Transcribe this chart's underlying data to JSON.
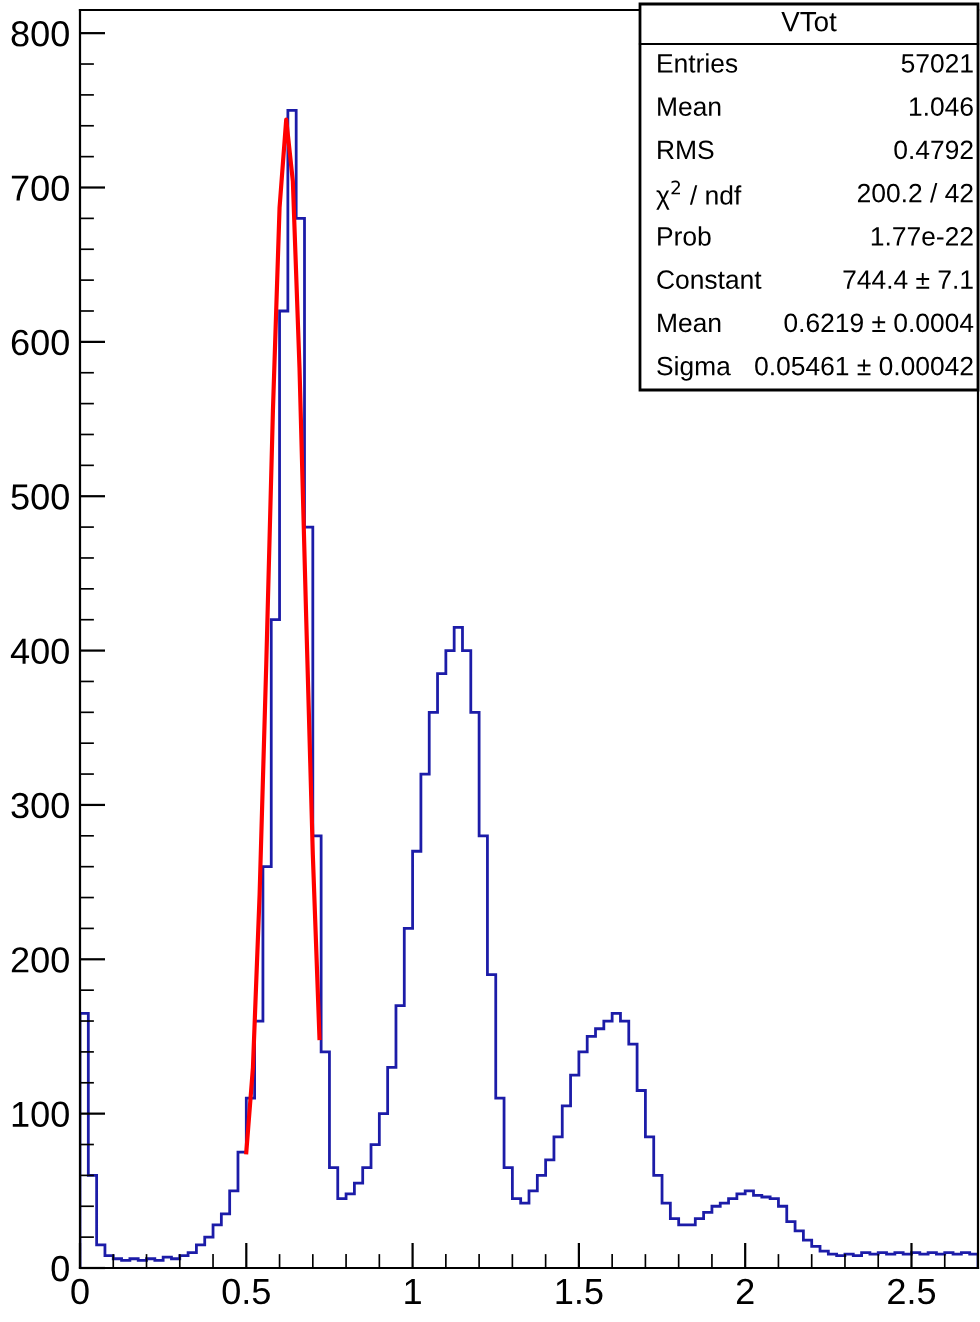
{
  "chart_data": {
    "type": "histogram",
    "title": "VTot",
    "bins": [
      0,
      0.025,
      0.05,
      0.075,
      0.1,
      0.125,
      0.15,
      0.175,
      0.2,
      0.225,
      0.25,
      0.275,
      0.3,
      0.325,
      0.35,
      0.375,
      0.4,
      0.425,
      0.45,
      0.475,
      0.5,
      0.525,
      0.55,
      0.575,
      0.6,
      0.625,
      0.65,
      0.675,
      0.7,
      0.725,
      0.75,
      0.775,
      0.8,
      0.825,
      0.85,
      0.875,
      0.9,
      0.925,
      0.95,
      0.975,
      1.0,
      1.025,
      1.05,
      1.075,
      1.1,
      1.125,
      1.15,
      1.175,
      1.2,
      1.225,
      1.25,
      1.275,
      1.3,
      1.325,
      1.35,
      1.375,
      1.4,
      1.425,
      1.45,
      1.475,
      1.5,
      1.525,
      1.55,
      1.575,
      1.6,
      1.625,
      1.65,
      1.675,
      1.7,
      1.725,
      1.75,
      1.775,
      1.8,
      1.825,
      1.85,
      1.875,
      1.9,
      1.925,
      1.95,
      1.975,
      2.0,
      2.025,
      2.05,
      2.075,
      2.1,
      2.125,
      2.15,
      2.175,
      2.2,
      2.225,
      2.25,
      2.275,
      2.3,
      2.325,
      2.35,
      2.375,
      2.4,
      2.425,
      2.45,
      2.475,
      2.5,
      2.525,
      2.55,
      2.575,
      2.6,
      2.625,
      2.65,
      2.675,
      2.7
    ],
    "series": [
      {
        "color": "#1c1ca8",
        "values": [
          165,
          60,
          15,
          8,
          6,
          5,
          6,
          5,
          6,
          5,
          7,
          6,
          8,
          10,
          15,
          20,
          28,
          35,
          50,
          75,
          110,
          160,
          260,
          420,
          620,
          750,
          680,
          480,
          280,
          140,
          65,
          45,
          48,
          55,
          65,
          80,
          100,
          130,
          170,
          220,
          270,
          320,
          360,
          385,
          400,
          415,
          400,
          360,
          280,
          190,
          110,
          65,
          45,
          42,
          50,
          60,
          70,
          85,
          105,
          125,
          140,
          150,
          155,
          160,
          165,
          160,
          145,
          115,
          85,
          60,
          42,
          32,
          28,
          28,
          32,
          36,
          40,
          42,
          45,
          48,
          50,
          47,
          46,
          45,
          40,
          30,
          24,
          18,
          14,
          11,
          9,
          8,
          9,
          8,
          10,
          9,
          10,
          9,
          10,
          9,
          10,
          9,
          10,
          9,
          10,
          9,
          10,
          9
        ]
      },
      {
        "type": "line",
        "color": "#ff0000",
        "x": [
          0.5,
          0.52,
          0.54,
          0.56,
          0.58,
          0.6,
          0.62,
          0.64,
          0.66,
          0.68,
          0.7,
          0.72
        ],
        "values": [
          75,
          130,
          242,
          391,
          555,
          687,
          744,
          704,
          583,
          422,
          268,
          149
        ]
      }
    ],
    "xlim": [
      0,
      2.7
    ],
    "xticks": [
      0,
      0.5,
      1,
      1.5,
      2,
      2.5
    ],
    "ylim": [
      0,
      815
    ],
    "yticks": [
      0,
      100,
      200,
      300,
      400,
      500,
      600,
      700,
      800
    ],
    "grid": false,
    "annotations": [
      "Entries",
      "57021",
      "Mean",
      "1.046",
      "RMS",
      "0.4792",
      "χ$^{2}$ / ndf",
      "200.2 / 42",
      "Prob",
      "1.77e-22",
      "Constant",
      "744.4 ± 7.1",
      "Mean",
      "0.6219 ± 0.0004",
      "Sigma",
      "0.05461 ± 0.00042"
    ]
  }
}
